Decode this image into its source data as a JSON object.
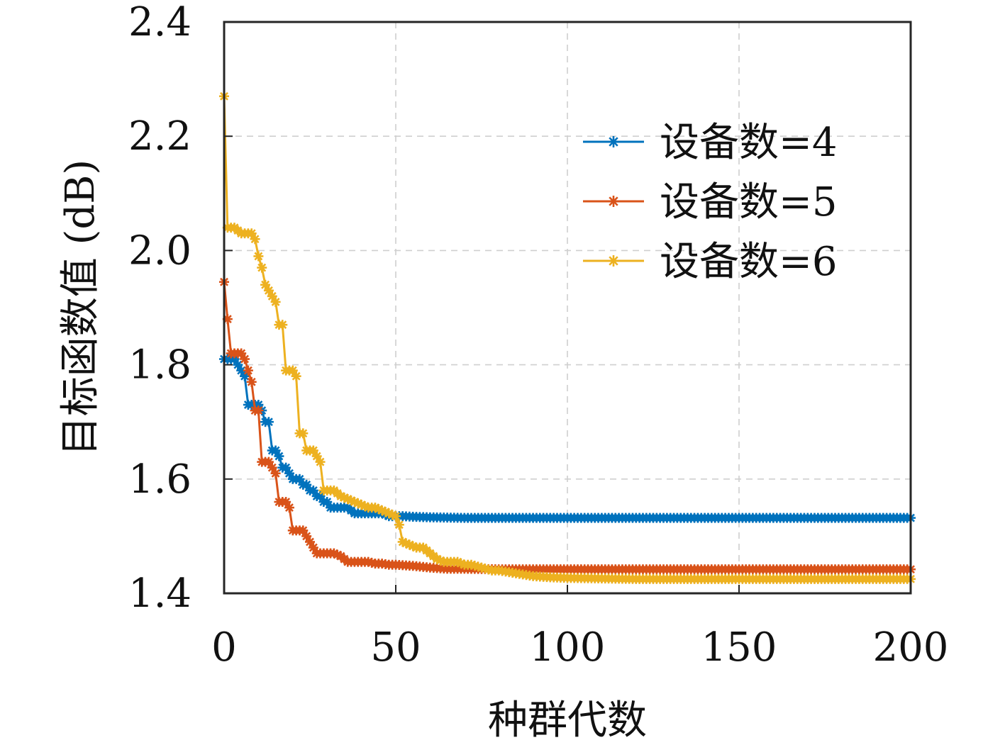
{
  "chart_data": {
    "type": "line",
    "xlabel": "种群代数",
    "ylabel": "目标函数值 (dB)",
    "xlim": [
      0,
      200
    ],
    "ylim": [
      1.4,
      2.4
    ],
    "xticks": [
      0,
      50,
      100,
      150,
      200
    ],
    "xtick_labels": [
      "0",
      "50",
      "100",
      "150",
      "200"
    ],
    "yticks": [
      1.4,
      1.6,
      1.8,
      2.0,
      2.2,
      2.4
    ],
    "ytick_labels": [
      "1.4",
      "1.6",
      "1.8",
      "2.0",
      "2.2",
      "2.4"
    ],
    "grid": true,
    "grid_style": "dashed",
    "legend_position": "top-right",
    "marker": "asterisk",
    "series": [
      {
        "name": "设备数=4",
        "color": "#0072BD",
        "points": [
          [
            0,
            1.81
          ],
          [
            1,
            1.81
          ],
          [
            2,
            1.81
          ],
          [
            3,
            1.81
          ],
          [
            4,
            1.8
          ],
          [
            5,
            1.79
          ],
          [
            6,
            1.78
          ],
          [
            7,
            1.73
          ],
          [
            8,
            1.73
          ],
          [
            9,
            1.73
          ],
          [
            10,
            1.73
          ],
          [
            11,
            1.72
          ],
          [
            12,
            1.7
          ],
          [
            13,
            1.7
          ],
          [
            14,
            1.65
          ],
          [
            15,
            1.65
          ],
          [
            16,
            1.64
          ],
          [
            17,
            1.62
          ],
          [
            18,
            1.62
          ],
          [
            19,
            1.61
          ],
          [
            20,
            1.6
          ],
          [
            21,
            1.6
          ],
          [
            22,
            1.6
          ],
          [
            23,
            1.59
          ],
          [
            24,
            1.59
          ],
          [
            25,
            1.58
          ],
          [
            26,
            1.58
          ],
          [
            27,
            1.57
          ],
          [
            28,
            1.57
          ],
          [
            29,
            1.56
          ],
          [
            30,
            1.56
          ],
          [
            31,
            1.55
          ],
          [
            32,
            1.55
          ],
          [
            34,
            1.55
          ],
          [
            36,
            1.55
          ],
          [
            38,
            1.54
          ],
          [
            40,
            1.54
          ],
          [
            42,
            1.54
          ],
          [
            44,
            1.54
          ],
          [
            46,
            1.54
          ],
          [
            48,
            1.535
          ],
          [
            50,
            1.535
          ],
          [
            52,
            1.535
          ],
          [
            55,
            1.534
          ],
          [
            60,
            1.533
          ],
          [
            70,
            1.532
          ],
          [
            80,
            1.532
          ],
          [
            100,
            1.532
          ],
          [
            120,
            1.532
          ],
          [
            150,
            1.532
          ],
          [
            180,
            1.532
          ],
          [
            200,
            1.532
          ]
        ]
      },
      {
        "name": "设备数=5",
        "color": "#D95319",
        "points": [
          [
            0,
            1.945
          ],
          [
            1,
            1.88
          ],
          [
            2,
            1.82
          ],
          [
            3,
            1.82
          ],
          [
            4,
            1.82
          ],
          [
            5,
            1.82
          ],
          [
            6,
            1.81
          ],
          [
            7,
            1.79
          ],
          [
            8,
            1.77
          ],
          [
            9,
            1.72
          ],
          [
            10,
            1.72
          ],
          [
            11,
            1.63
          ],
          [
            12,
            1.63
          ],
          [
            13,
            1.63
          ],
          [
            14,
            1.62
          ],
          [
            15,
            1.61
          ],
          [
            16,
            1.56
          ],
          [
            17,
            1.56
          ],
          [
            18,
            1.56
          ],
          [
            19,
            1.55
          ],
          [
            20,
            1.51
          ],
          [
            21,
            1.51
          ],
          [
            22,
            1.51
          ],
          [
            23,
            1.51
          ],
          [
            24,
            1.5
          ],
          [
            25,
            1.49
          ],
          [
            26,
            1.48
          ],
          [
            27,
            1.47
          ],
          [
            28,
            1.47
          ],
          [
            30,
            1.47
          ],
          [
            32,
            1.47
          ],
          [
            34,
            1.465
          ],
          [
            35,
            1.46
          ],
          [
            36,
            1.455
          ],
          [
            38,
            1.455
          ],
          [
            40,
            1.455
          ],
          [
            42,
            1.455
          ],
          [
            44,
            1.452
          ],
          [
            46,
            1.452
          ],
          [
            48,
            1.45
          ],
          [
            50,
            1.45
          ],
          [
            55,
            1.448
          ],
          [
            60,
            1.445
          ],
          [
            65,
            1.443
          ],
          [
            70,
            1.443
          ],
          [
            80,
            1.442
          ],
          [
            90,
            1.442
          ],
          [
            100,
            1.442
          ],
          [
            120,
            1.442
          ],
          [
            150,
            1.442
          ],
          [
            180,
            1.442
          ],
          [
            200,
            1.442
          ]
        ]
      },
      {
        "name": "设备数=6",
        "color": "#EDB120",
        "points": [
          [
            0,
            2.27
          ],
          [
            1,
            2.04
          ],
          [
            2,
            2.04
          ],
          [
            3,
            2.04
          ],
          [
            4,
            2.035
          ],
          [
            5,
            2.03
          ],
          [
            6,
            2.03
          ],
          [
            7,
            2.03
          ],
          [
            8,
            2.03
          ],
          [
            9,
            2.02
          ],
          [
            10,
            1.99
          ],
          [
            11,
            1.97
          ],
          [
            12,
            1.94
          ],
          [
            13,
            1.93
          ],
          [
            14,
            1.92
          ],
          [
            15,
            1.91
          ],
          [
            16,
            1.87
          ],
          [
            17,
            1.87
          ],
          [
            18,
            1.79
          ],
          [
            19,
            1.79
          ],
          [
            20,
            1.79
          ],
          [
            21,
            1.78
          ],
          [
            22,
            1.68
          ],
          [
            23,
            1.68
          ],
          [
            24,
            1.65
          ],
          [
            25,
            1.65
          ],
          [
            26,
            1.65
          ],
          [
            27,
            1.64
          ],
          [
            28,
            1.63
          ],
          [
            29,
            1.58
          ],
          [
            30,
            1.58
          ],
          [
            32,
            1.58
          ],
          [
            34,
            1.57
          ],
          [
            36,
            1.565
          ],
          [
            38,
            1.56
          ],
          [
            40,
            1.555
          ],
          [
            42,
            1.55
          ],
          [
            44,
            1.55
          ],
          [
            46,
            1.545
          ],
          [
            48,
            1.54
          ],
          [
            50,
            1.535
          ],
          [
            51,
            1.52
          ],
          [
            52,
            1.49
          ],
          [
            54,
            1.485
          ],
          [
            56,
            1.48
          ],
          [
            58,
            1.48
          ],
          [
            60,
            1.47
          ],
          [
            62,
            1.46
          ],
          [
            64,
            1.455
          ],
          [
            66,
            1.455
          ],
          [
            68,
            1.455
          ],
          [
            70,
            1.45
          ],
          [
            72,
            1.45
          ],
          [
            75,
            1.445
          ],
          [
            78,
            1.44
          ],
          [
            80,
            1.44
          ],
          [
            85,
            1.435
          ],
          [
            90,
            1.43
          ],
          [
            95,
            1.428
          ],
          [
            100,
            1.427
          ],
          [
            110,
            1.426
          ],
          [
            120,
            1.425
          ],
          [
            140,
            1.425
          ],
          [
            160,
            1.425
          ],
          [
            180,
            1.425
          ],
          [
            200,
            1.425
          ]
        ]
      }
    ]
  }
}
